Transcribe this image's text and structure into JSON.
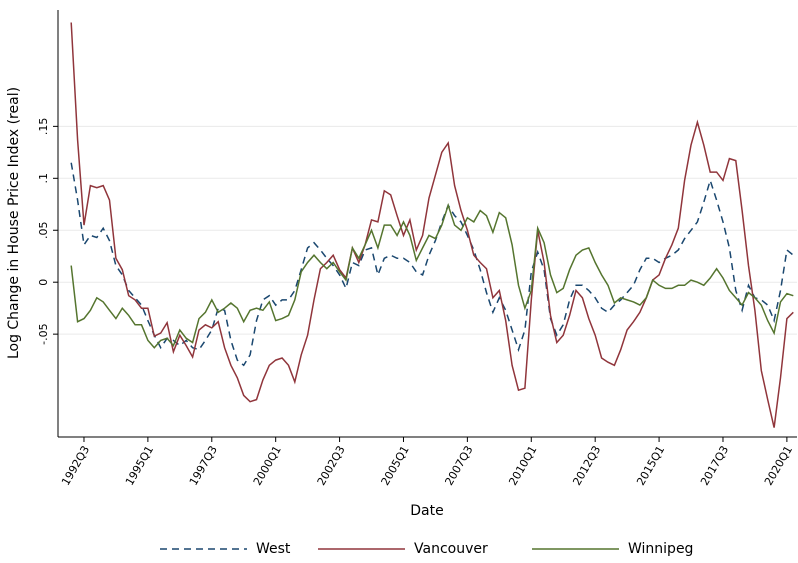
{
  "chart_data": {
    "type": "line",
    "y_label": "Log Change in House Price Index (real)",
    "x_label": "Date",
    "x": [
      "1992Q1",
      "1992Q2",
      "1992Q3",
      "1992Q4",
      "1993Q1",
      "1993Q2",
      "1993Q3",
      "1993Q4",
      "1994Q1",
      "1994Q2",
      "1994Q3",
      "1994Q4",
      "1995Q1",
      "1995Q2",
      "1995Q3",
      "1995Q4",
      "1996Q1",
      "1996Q2",
      "1996Q3",
      "1996Q4",
      "1997Q1",
      "1997Q2",
      "1997Q3",
      "1997Q4",
      "1998Q1",
      "1998Q2",
      "1998Q3",
      "1998Q4",
      "1999Q1",
      "1999Q2",
      "1999Q3",
      "1999Q4",
      "2000Q1",
      "2000Q2",
      "2000Q3",
      "2000Q4",
      "2001Q1",
      "2001Q2",
      "2001Q3",
      "2001Q4",
      "2002Q1",
      "2002Q2",
      "2002Q3",
      "2002Q4",
      "2003Q1",
      "2003Q2",
      "2003Q3",
      "2003Q4",
      "2004Q1",
      "2004Q2",
      "2004Q3",
      "2004Q4",
      "2005Q1",
      "2005Q2",
      "2005Q3",
      "2005Q4",
      "2006Q1",
      "2006Q2",
      "2006Q3",
      "2006Q4",
      "2007Q1",
      "2007Q2",
      "2007Q3",
      "2007Q4",
      "2008Q1",
      "2008Q2",
      "2008Q3",
      "2008Q4",
      "2009Q1",
      "2009Q2",
      "2009Q3",
      "2009Q4",
      "2010Q1",
      "2010Q2",
      "2010Q3",
      "2010Q4",
      "2011Q1",
      "2011Q2",
      "2011Q3",
      "2011Q4",
      "2012Q1",
      "2012Q2",
      "2012Q3",
      "2012Q4",
      "2013Q1",
      "2013Q2",
      "2013Q3",
      "2013Q4",
      "2014Q1",
      "2014Q2",
      "2014Q3",
      "2014Q4",
      "2015Q1",
      "2015Q2",
      "2015Q3",
      "2015Q4",
      "2016Q1",
      "2016Q2",
      "2016Q3",
      "2016Q4",
      "2017Q1",
      "2017Q2",
      "2017Q3",
      "2017Q4",
      "2018Q1",
      "2018Q2",
      "2018Q3",
      "2018Q4",
      "2019Q1",
      "2019Q2",
      "2019Q3",
      "2019Q4",
      "2020Q1",
      "2020Q2"
    ],
    "xticks": [
      "1992Q3",
      "1995Q1",
      "1997Q3",
      "2000Q1",
      "2002Q3",
      "2005Q1",
      "2007Q3",
      "2010Q1",
      "2012Q3",
      "2015Q1",
      "2017Q3",
      "2020Q1"
    ],
    "ylim": [
      -0.149,
      0.262
    ],
    "yticks": [
      {
        "value": -0.05,
        "label": "-.05"
      },
      0,
      {
        "value": 0.05,
        "label": ".05"
      },
      {
        "value": 0.1,
        "label": ".1"
      },
      {
        "value": 0.15,
        "label": ".15"
      }
    ],
    "grid": true,
    "legend": "bottom",
    "series": [
      {
        "name": "West",
        "color": "#1a476f",
        "line_style": "dashed",
        "values": [
          0.115,
          0.079,
          0.036,
          0.045,
          0.043,
          0.052,
          0.04,
          0.016,
          0.007,
          -0.008,
          -0.015,
          -0.022,
          -0.037,
          -0.051,
          -0.063,
          -0.054,
          -0.056,
          -0.061,
          -0.056,
          -0.063,
          -0.065,
          -0.056,
          -0.046,
          -0.025,
          -0.027,
          -0.056,
          -0.075,
          -0.08,
          -0.07,
          -0.037,
          -0.017,
          -0.013,
          -0.022,
          -0.017,
          -0.017,
          -0.008,
          0.012,
          0.033,
          0.038,
          0.031,
          0.023,
          0.016,
          0.007,
          -0.006,
          0.019,
          0.016,
          0.031,
          0.033,
          0.007,
          0.023,
          0.026,
          0.023,
          0.023,
          0.019,
          0.01,
          0.007,
          0.026,
          0.04,
          0.058,
          0.074,
          0.064,
          0.058,
          0.045,
          0.031,
          0.012,
          -0.01,
          -0.029,
          -0.015,
          -0.027,
          -0.046,
          -0.065,
          -0.046,
          0.01,
          0.029,
          0.012,
          -0.035,
          -0.051,
          -0.041,
          -0.017,
          -0.003,
          -0.003,
          -0.008,
          -0.015,
          -0.025,
          -0.029,
          -0.022,
          -0.017,
          -0.01,
          -0.003,
          0.012,
          0.023,
          0.023,
          0.019,
          0.023,
          0.026,
          0.031,
          0.042,
          0.05,
          0.058,
          0.077,
          0.098,
          0.079,
          0.058,
          0.033,
          -0.008,
          -0.027,
          -0.003,
          -0.015,
          -0.017,
          -0.022,
          -0.037,
          -0.008,
          0.031,
          0.026
        ]
      },
      {
        "name": "Vancouver",
        "color": "#90353b",
        "line_style": "solid",
        "values": [
          0.25,
          0.137,
          0.055,
          0.093,
          0.091,
          0.093,
          0.079,
          0.023,
          0.012,
          -0.013,
          -0.017,
          -0.025,
          -0.025,
          -0.052,
          -0.049,
          -0.039,
          -0.067,
          -0.051,
          -0.061,
          -0.072,
          -0.046,
          -0.041,
          -0.044,
          -0.038,
          -0.063,
          -0.08,
          -0.092,
          -0.109,
          -0.115,
          -0.113,
          -0.094,
          -0.08,
          -0.075,
          -0.073,
          -0.08,
          -0.096,
          -0.07,
          -0.051,
          -0.017,
          0.013,
          0.019,
          0.026,
          0.012,
          0.004,
          0.033,
          0.019,
          0.036,
          0.06,
          0.058,
          0.088,
          0.084,
          0.064,
          0.045,
          0.06,
          0.031,
          0.045,
          0.081,
          0.103,
          0.125,
          0.134,
          0.093,
          0.069,
          0.05,
          0.026,
          0.019,
          0.013,
          -0.015,
          -0.008,
          -0.037,
          -0.08,
          -0.104,
          -0.102,
          -0.017,
          0.05,
          0.019,
          -0.032,
          -0.058,
          -0.051,
          -0.032,
          -0.008,
          -0.015,
          -0.035,
          -0.051,
          -0.073,
          -0.077,
          -0.08,
          -0.065,
          -0.046,
          -0.038,
          -0.029,
          -0.015,
          0.002,
          0.007,
          0.023,
          0.036,
          0.052,
          0.098,
          0.132,
          0.154,
          0.132,
          0.106,
          0.106,
          0.098,
          0.119,
          0.117,
          0.069,
          0.016,
          -0.027,
          -0.085,
          -0.113,
          -0.14,
          -0.092,
          -0.035,
          -0.029
        ]
      },
      {
        "name": "Winnipeg",
        "color": "#55752f",
        "line_style": "solid",
        "values": [
          0.016,
          -0.038,
          -0.035,
          -0.027,
          -0.015,
          -0.019,
          -0.027,
          -0.035,
          -0.025,
          -0.032,
          -0.041,
          -0.041,
          -0.056,
          -0.063,
          -0.056,
          -0.054,
          -0.061,
          -0.046,
          -0.054,
          -0.058,
          -0.035,
          -0.029,
          -0.017,
          -0.029,
          -0.025,
          -0.02,
          -0.025,
          -0.038,
          -0.027,
          -0.025,
          -0.027,
          -0.019,
          -0.037,
          -0.035,
          -0.032,
          -0.017,
          0.01,
          0.019,
          0.026,
          0.019,
          0.013,
          0.019,
          0.01,
          0.002,
          0.033,
          0.023,
          0.036,
          0.05,
          0.033,
          0.055,
          0.055,
          0.045,
          0.058,
          0.045,
          0.021,
          0.033,
          0.045,
          0.042,
          0.055,
          0.074,
          0.055,
          0.05,
          0.062,
          0.058,
          0.069,
          0.064,
          0.048,
          0.067,
          0.062,
          0.036,
          -0.003,
          -0.025,
          -0.008,
          0.052,
          0.038,
          0.007,
          -0.01,
          -0.006,
          0.012,
          0.026,
          0.031,
          0.033,
          0.019,
          0.007,
          -0.003,
          -0.02,
          -0.015,
          -0.017,
          -0.019,
          -0.022,
          -0.015,
          0.002,
          -0.003,
          -0.006,
          -0.006,
          -0.003,
          -0.003,
          0.002,
          0,
          -0.003,
          0.004,
          0.013,
          0.004,
          -0.008,
          -0.015,
          -0.022,
          -0.01,
          -0.015,
          -0.022,
          -0.037,
          -0.049,
          -0.019,
          -0.011,
          -0.013
        ]
      }
    ]
  }
}
